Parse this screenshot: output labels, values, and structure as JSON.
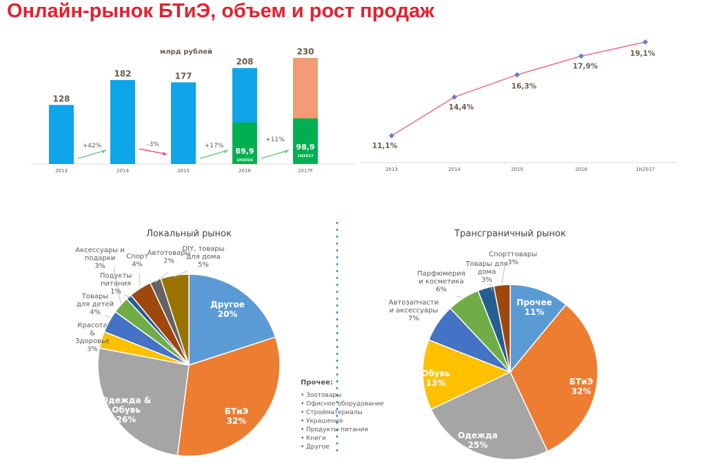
{
  "title": "Онлайн-рынок БТиЭ, объем и рост продаж",
  "chart_data": [
    {
      "type": "bar",
      "title": "млрд рублей",
      "categories": [
        "2013",
        "2014",
        "2015",
        "2016",
        "2017F"
      ],
      "values": [
        128,
        182,
        177,
        208,
        230
      ],
      "half_year": {
        "values": [
          null,
          null,
          null,
          89.9,
          98.9
        ],
        "labels": [
          "",
          "",
          "",
          "1H2016",
          "1H2017"
        ]
      },
      "value_labels": [
        "128",
        "182",
        "177",
        "208",
        "230"
      ],
      "half_labels": [
        "89,9",
        "98,9"
      ],
      "growth": [
        "+42%",
        "-3%",
        "+17%",
        "+11%"
      ],
      "colors": {
        "full": "#0ea5e9",
        "half": "#00b050",
        "forecast": "#f19c74",
        "up": "#70c98a",
        "down": "#f0506e"
      }
    },
    {
      "type": "line",
      "categories": [
        "2013",
        "2014",
        "2015",
        "2016",
        "1H2017"
      ],
      "values": [
        11.1,
        14.4,
        16.3,
        17.9,
        19.1
      ],
      "labels": [
        "11,1%",
        "14,4%",
        "16,3%",
        "17,9%",
        "19,1%"
      ],
      "colors": {
        "line": "#f06a86",
        "marker": "#6a7fc9"
      }
    },
    {
      "type": "pie",
      "title": "Локальный рынок",
      "slices": [
        {
          "name": "Другое",
          "value": 20,
          "color": "#5b9bd5"
        },
        {
          "name": "БТиЭ",
          "value": 32,
          "color": "#ed7d31"
        },
        {
          "name": "Одежда & Обувь",
          "value": 26,
          "color": "#a5a5a5"
        },
        {
          "name": "Красота & Здоровье",
          "value": 3,
          "color": "#ffc000"
        },
        {
          "name": "Товары для детей",
          "value": 4,
          "color": "#4472c4"
        },
        {
          "name": "Аксессуары и подарки",
          "value": 3,
          "color": "#70ad47"
        },
        {
          "name": "Подукты питания",
          "value": 1,
          "color": "#255e91"
        },
        {
          "name": "Спорт",
          "value": 4,
          "color": "#9e480e"
        },
        {
          "name": "Автотовары",
          "value": 2,
          "color": "#636363"
        },
        {
          "name": "DIY, товары для дома",
          "value": 5,
          "color": "#997300"
        }
      ]
    },
    {
      "type": "pie",
      "title": "Трансграничный рынок",
      "slices": [
        {
          "name": "Прочее",
          "value": 11,
          "color": "#5b9bd5"
        },
        {
          "name": "БТиЭ",
          "value": 32,
          "color": "#ed7d31"
        },
        {
          "name": "Одежда",
          "value": 25,
          "color": "#a5a5a5"
        },
        {
          "name": "Обувь",
          "value": 13,
          "color": "#ffc000"
        },
        {
          "name": "Автозапчасти и аксессуары",
          "value": 7,
          "color": "#4472c4"
        },
        {
          "name": "Парфюмерия и косметика",
          "value": 6,
          "color": "#70ad47"
        },
        {
          "name": "Товары для дома",
          "value": 3,
          "color": "#255e91"
        },
        {
          "name": "Спорттовары",
          "value": 3,
          "color": "#9e480e"
        }
      ]
    }
  ],
  "note": {
    "title": "Прочее:",
    "items": [
      "Зоотовары",
      "Офисное оборудование",
      "Стройматериалы",
      "Украшения",
      "Продукты питания",
      "Книги",
      "Другое"
    ]
  }
}
